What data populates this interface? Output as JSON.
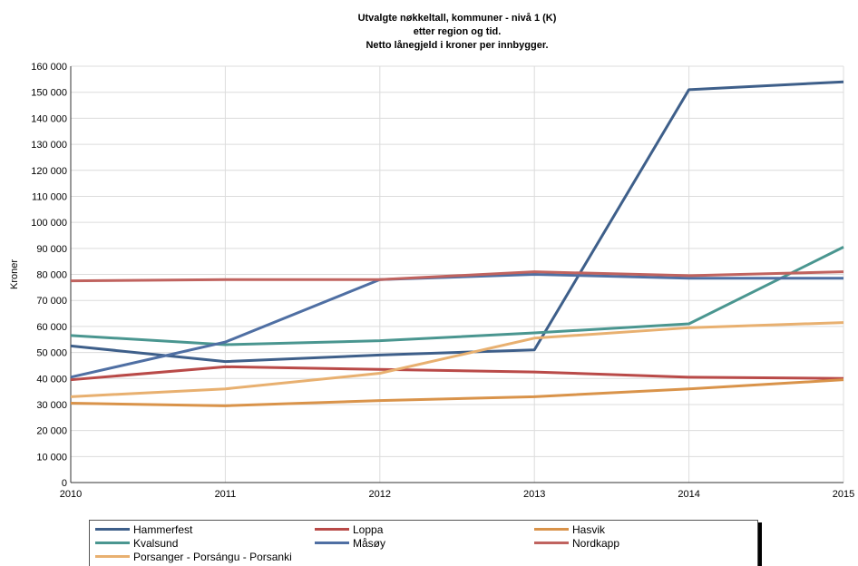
{
  "chart_data": {
    "type": "line",
    "title_lines": [
      "Utvalgte nøkkeltall, kommuner - nivå 1 (K)",
      "etter region og tid.",
      "Netto lånegjeld i kroner per innbygger."
    ],
    "xlabel": "",
    "ylabel": "Kroner",
    "x": [
      "2010",
      "2011",
      "2012",
      "2013",
      "2014",
      "2015"
    ],
    "ylim": [
      0,
      160000
    ],
    "yticks": [
      "0",
      "10 000",
      "20 000",
      "30 000",
      "40 000",
      "50 000",
      "60 000",
      "70 000",
      "80 000",
      "90 000",
      "100 000",
      "110 000",
      "120 000",
      "130 000",
      "140 000",
      "150 000",
      "160 000"
    ],
    "grid": true,
    "legend_position": "bottom",
    "series": [
      {
        "name": "Hammerfest",
        "color": "#3e5f8a",
        "values": [
          52500,
          46500,
          49000,
          51000,
          151000,
          154000
        ]
      },
      {
        "name": "Loppa",
        "color": "#b94a48",
        "values": [
          39500,
          44500,
          43500,
          42500,
          40500,
          40000
        ]
      },
      {
        "name": "Hasvik",
        "color": "#d9934a",
        "values": [
          30500,
          29500,
          31500,
          33000,
          36000,
          39500
        ]
      },
      {
        "name": "Kvalsund",
        "color": "#4a9690",
        "values": [
          56500,
          53000,
          54500,
          57500,
          61000,
          90500
        ]
      },
      {
        "name": "Måsøy",
        "color": "#4f6fa3",
        "values": [
          40500,
          54000,
          78000,
          80000,
          78500,
          78500
        ]
      },
      {
        "name": "Nordkapp",
        "color": "#c0635f",
        "values": [
          77500,
          78000,
          78000,
          81000,
          79500,
          81000
        ]
      },
      {
        "name": "Porsanger - Porsángu - Porsanki",
        "color": "#e8b070",
        "values": [
          33000,
          36000,
          42000,
          55500,
          59500,
          61500
        ]
      }
    ]
  }
}
